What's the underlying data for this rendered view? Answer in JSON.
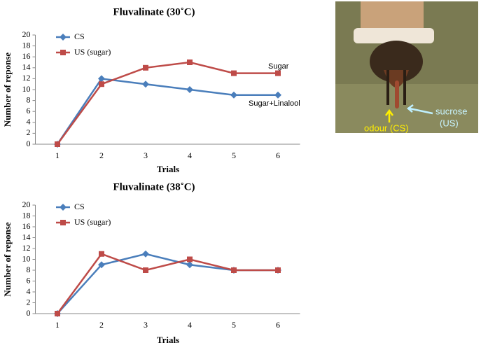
{
  "chart_data": [
    {
      "type": "line",
      "title": "Fluvalinate (30˚C)",
      "ylabel": "Number of reponse",
      "xlabel": "Trials",
      "categories": [
        "1",
        "2",
        "3",
        "4",
        "5",
        "6"
      ],
      "series": [
        {
          "name": "CS",
          "color": "#4a7ebb",
          "marker": "diamond",
          "values": [
            0,
            12,
            11,
            10,
            9,
            9
          ]
        },
        {
          "name": "US (sugar)",
          "color": "#be4b48",
          "marker": "square",
          "values": [
            0,
            11,
            14,
            15,
            13,
            13
          ]
        }
      ],
      "annotations": [
        "Sugar",
        "Sugar+Linalool"
      ],
      "ylim": [
        0,
        20
      ],
      "yticks": [
        0,
        2,
        4,
        6,
        8,
        10,
        12,
        14,
        16,
        18,
        20
      ]
    },
    {
      "type": "line",
      "title": "Fluvalinate (38˚C)",
      "ylabel": "Number of reponse",
      "xlabel": "Trials",
      "categories": [
        "1",
        "2",
        "3",
        "4",
        "5",
        "6"
      ],
      "series": [
        {
          "name": "CS",
          "color": "#4a7ebb",
          "marker": "diamond",
          "values": [
            0,
            9,
            11,
            9,
            8,
            8
          ]
        },
        {
          "name": "US (sugar)",
          "color": "#be4b48",
          "marker": "square",
          "values": [
            0,
            11,
            8,
            10,
            8,
            8
          ]
        }
      ],
      "ylim": [
        0,
        20
      ],
      "yticks": [
        0,
        2,
        4,
        6,
        8,
        10,
        12,
        14,
        16,
        18,
        20
      ]
    }
  ],
  "image": {
    "labels": [
      "sucrose",
      "(US)",
      "odour (CS)"
    ]
  }
}
